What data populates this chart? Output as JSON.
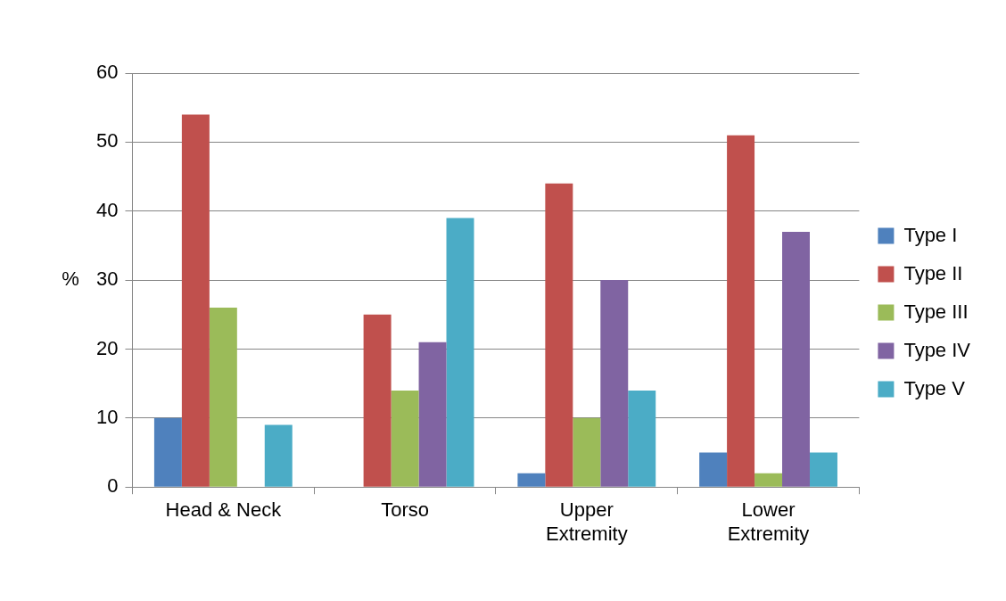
{
  "chart_data": {
    "type": "bar",
    "ylabel": "%",
    "categories": [
      "Head & Neck",
      "Torso",
      "Upper Extremity",
      "Lower Extremity"
    ],
    "series": [
      {
        "name": "Type I",
        "color": "#4f81bd",
        "values": [
          10,
          0,
          2,
          5
        ]
      },
      {
        "name": "Type II",
        "color": "#c0504d",
        "values": [
          54,
          25,
          44,
          51
        ]
      },
      {
        "name": "Type III",
        "color": "#9bbb59",
        "values": [
          26,
          14,
          10,
          2
        ]
      },
      {
        "name": "Type IV",
        "color": "#8064a2",
        "values": [
          0,
          21,
          30,
          37
        ]
      },
      {
        "name": "Type V",
        "color": "#4bacc6",
        "values": [
          9,
          39,
          14,
          5
        ]
      }
    ],
    "ylim": [
      0,
      60
    ],
    "yticks": [
      0,
      10,
      20,
      30,
      40,
      50,
      60
    ],
    "grid": "y",
    "legend": "right"
  }
}
